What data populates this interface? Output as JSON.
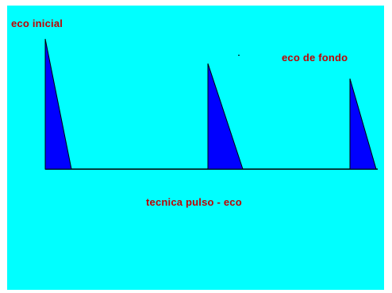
{
  "diagram": {
    "labels": {
      "initial_echo": "eco inicial",
      "back_echo": "eco de fondo",
      "caption": "tecnica pulso - eco"
    },
    "colors": {
      "background": "#00ffff",
      "pulse_fill": "#0000ff",
      "outline": "#000000",
      "text": "#c00000"
    },
    "pulses": [
      {
        "name": "initial-echo",
        "relative_height": 1.0
      },
      {
        "name": "back-echo-1",
        "relative_height": 0.82
      },
      {
        "name": "back-echo-2",
        "relative_height": 0.71
      }
    ]
  }
}
